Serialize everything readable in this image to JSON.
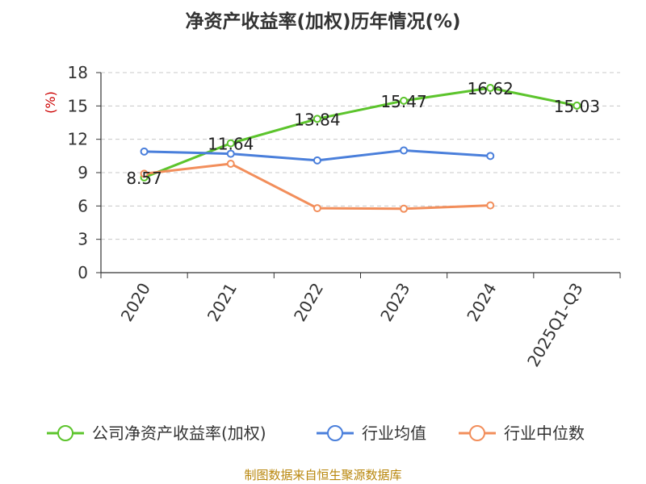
{
  "chart_data": {
    "type": "line",
    "title": "净资产收益率(加权)历年情况(%)",
    "ylabel": "(%)",
    "categories": [
      "2020",
      "2021",
      "2022",
      "2023",
      "2024",
      "2025Q1-Q3"
    ],
    "ylim": [
      0,
      18
    ],
    "yticks": [
      0,
      3,
      6,
      9,
      12,
      15,
      18
    ],
    "grid": true,
    "legend_position": "bottom",
    "series": [
      {
        "name": "公司净资产收益率(加权)",
        "color": "#5cc42c",
        "values": [
          8.57,
          11.64,
          13.84,
          15.47,
          16.62,
          15.03
        ],
        "labels": true
      },
      {
        "name": "行业均值",
        "color": "#4a7fdb",
        "values": [
          10.9,
          10.7,
          10.1,
          11.0,
          10.5,
          null
        ],
        "labels": false
      },
      {
        "name": "行业中位数",
        "color": "#f28e5b",
        "values": [
          8.9,
          9.8,
          5.8,
          5.75,
          6.05,
          null
        ],
        "labels": false
      }
    ]
  },
  "source": "制图数据来自恒生聚源数据库"
}
